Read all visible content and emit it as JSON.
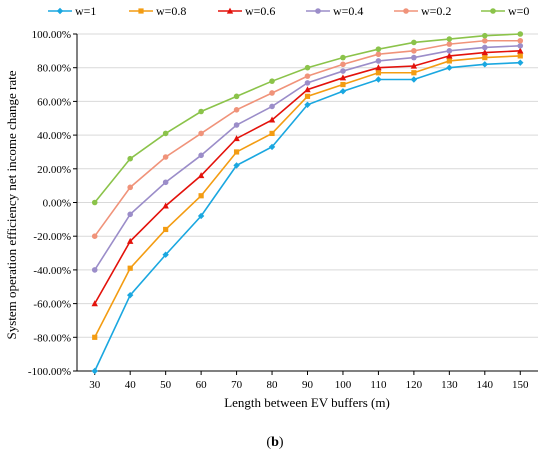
{
  "chart_data": {
    "type": "line",
    "xlabel": "Length between EV buffers (m)",
    "ylabel": "System operation efficiency net income change rate",
    "caption_open": "(",
    "caption_bold": "b",
    "caption_close": ")",
    "x": [
      30,
      40,
      50,
      60,
      70,
      80,
      90,
      100,
      110,
      120,
      130,
      140,
      150
    ],
    "x_tick_labels": [
      "30",
      "40",
      "50",
      "60",
      "70",
      "80",
      "90",
      "100",
      "110",
      "120",
      "130",
      "140",
      "150"
    ],
    "ylim": [
      -100,
      100
    ],
    "y_ticks": [
      -100,
      -80,
      -60,
      -40,
      -20,
      0,
      20,
      40,
      60,
      80,
      100
    ],
    "y_tick_labels": [
      "-100.00%",
      "-80.00%",
      "-60.00%",
      "-40.00%",
      "-20.00%",
      "0.00%",
      "20.00%",
      "40.00%",
      "60.00%",
      "80.00%",
      "100.00%"
    ],
    "grid": true,
    "legend_position": "top",
    "series": [
      {
        "name": "w=1",
        "color": "#1aa7e0",
        "marker": "diamond",
        "values": [
          -100,
          -55,
          -31,
          -8,
          22,
          33,
          58,
          66,
          73,
          73,
          80,
          82,
          83
        ]
      },
      {
        "name": "w=0.8",
        "color": "#f39c12",
        "marker": "square",
        "values": [
          -80,
          -39,
          -16,
          4,
          30,
          41,
          63,
          70,
          77,
          77,
          84,
          86,
          87
        ]
      },
      {
        "name": "w=0.6",
        "color": "#e3120b",
        "marker": "triangle",
        "values": [
          -60,
          -23,
          -2,
          16,
          38,
          49,
          67,
          74,
          80,
          81,
          87,
          89,
          90
        ]
      },
      {
        "name": "w=0.4",
        "color": "#9b8dc9",
        "marker": "circle",
        "values": [
          -40,
          -7,
          12,
          28,
          46,
          57,
          71,
          78,
          84,
          86,
          90,
          92,
          93
        ]
      },
      {
        "name": "w=0.2",
        "color": "#f0937a",
        "marker": "circle",
        "values": [
          -20,
          9,
          27,
          41,
          55,
          65,
          75,
          82,
          88,
          90,
          94,
          96,
          96
        ]
      },
      {
        "name": "w=0",
        "color": "#8bc34a",
        "marker": "circle",
        "values": [
          0,
          26,
          41,
          54,
          63,
          72,
          80,
          86,
          91,
          95,
          97,
          99,
          100
        ]
      }
    ]
  }
}
